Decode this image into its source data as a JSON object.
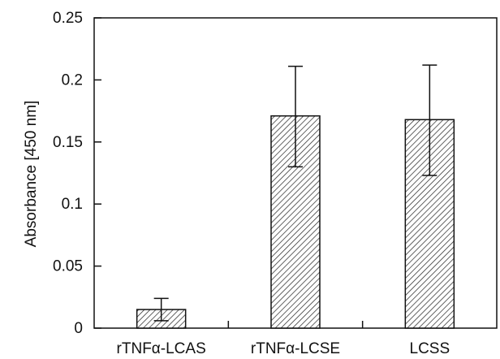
{
  "chart_data": {
    "type": "bar",
    "title": "",
    "xlabel": "",
    "ylabel": "Absorbance [450 nm]",
    "categories": [
      "rTNFα-LCAS",
      "rTNFα-LCSE",
      "LCSS"
    ],
    "values": [
      0.015,
      0.171,
      0.168
    ],
    "error_low": [
      0.006,
      0.13,
      0.123
    ],
    "error_high": [
      0.024,
      0.211,
      0.212
    ],
    "ylim": [
      0,
      0.25
    ],
    "yticks": [
      0,
      0.05,
      0.1,
      0.15,
      0.2,
      0.25
    ],
    "ytick_labels": [
      "0",
      "0.05",
      "0.1",
      "0.15",
      "0.2",
      "0.25"
    ],
    "grid": false,
    "bar_pattern": "diagonal-hatch",
    "colors": {
      "bar_fill": "#ffffff",
      "hatch": "#222222",
      "axis": "#111111"
    }
  }
}
